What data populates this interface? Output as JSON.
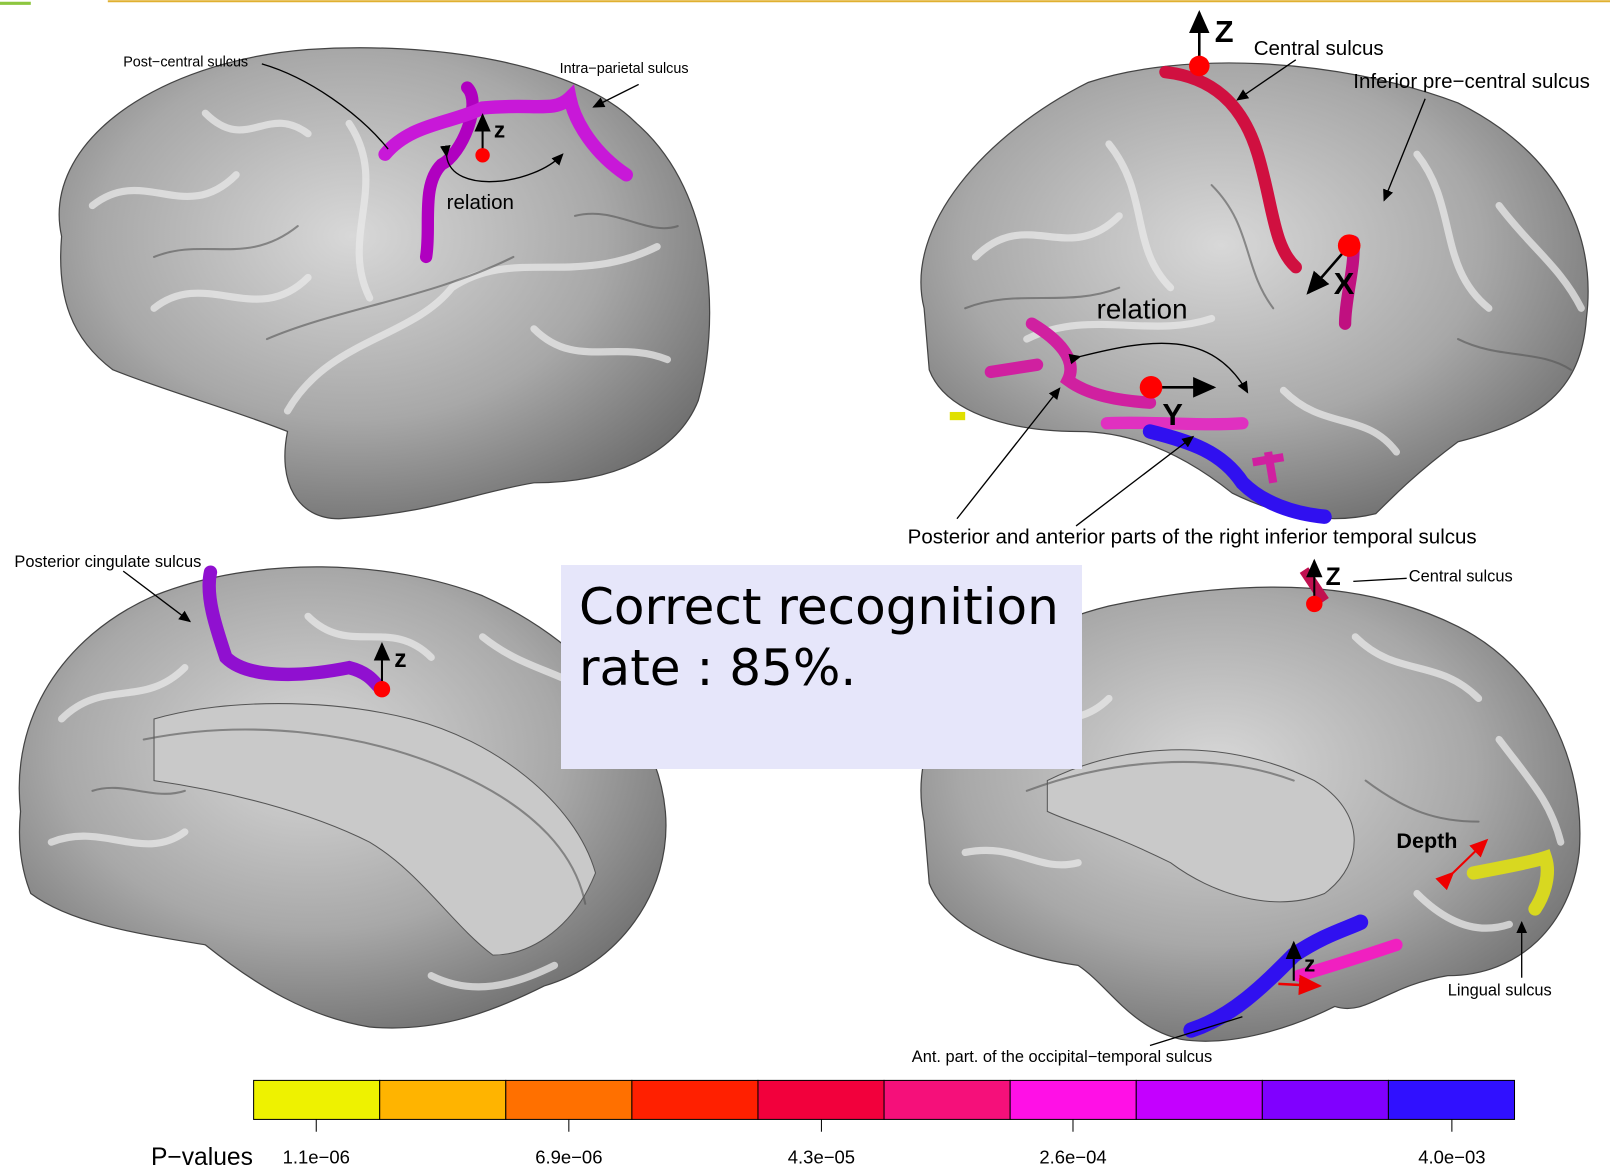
{
  "panels": [
    {
      "labels": [
        "Post−central sulcus",
        "Intra−parietal sulcus",
        "z",
        "relation"
      ]
    },
    {
      "labels": [
        "Z",
        "Central sulcus",
        "Inferior pre−central sulcus",
        "X",
        "relation",
        "Y",
        "Posterior and anterior parts of the right inferior temporal sulcus"
      ]
    },
    {
      "labels": [
        "Posterior cingulate sulcus",
        "z"
      ]
    },
    {
      "labels": [
        "Z",
        "Central sulcus",
        "Depth",
        "Lingual sulcus",
        "z",
        "Ant. part. of the occipital−temporal sulcus"
      ]
    }
  ],
  "overlay": {
    "text": "Correct recognition rate : 85%."
  },
  "colorbar": {
    "title": "P−values",
    "colors": [
      "#eef200",
      "#ffb400",
      "#ff7000",
      "#ff2000",
      "#f2003c",
      "#f5107a",
      "#ff10e6",
      "#c400ff",
      "#8000ff",
      "#3010ff"
    ],
    "tick_labels": [
      "1.1e−06",
      "6.9e−06",
      "4.3e−05",
      "2.6e−04",
      "4.0e−03"
    ]
  }
}
